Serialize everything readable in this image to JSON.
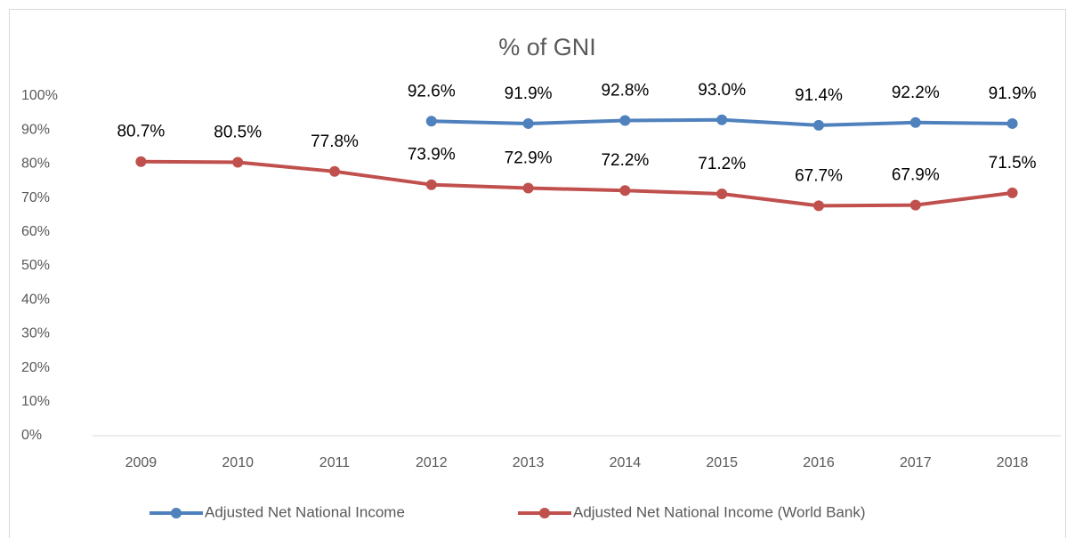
{
  "chart_data": {
    "type": "line",
    "title": "% of GNI",
    "categories": [
      "2009",
      "2010",
      "2011",
      "2012",
      "2013",
      "2014",
      "2015",
      "2016",
      "2017",
      "2018"
    ],
    "series": [
      {
        "name": "Adjusted Net National Income",
        "color": "#4f81bd",
        "values": [
          null,
          null,
          null,
          92.6,
          91.9,
          92.8,
          93.0,
          91.4,
          92.2,
          91.9
        ],
        "value_labels": [
          null,
          null,
          null,
          "92.6%",
          "91.9%",
          "92.8%",
          "93.0%",
          "91.4%",
          "92.2%",
          "91.9%"
        ]
      },
      {
        "name": "Adjusted Net National Income (World Bank)",
        "color": "#c0504d",
        "values": [
          80.7,
          80.5,
          77.8,
          73.9,
          72.9,
          72.2,
          71.2,
          67.7,
          67.9,
          71.5
        ],
        "value_labels": [
          "80.7%",
          "80.5%",
          "77.8%",
          "73.9%",
          "72.9%",
          "72.2%",
          "71.2%",
          "67.7%",
          "67.9%",
          "71.5%"
        ]
      }
    ],
    "ylim": [
      0,
      100
    ],
    "yticks": [
      {
        "value": 0,
        "label": "0%"
      },
      {
        "value": 10,
        "label": "10%"
      },
      {
        "value": 20,
        "label": "20%"
      },
      {
        "value": 30,
        "label": "30%"
      },
      {
        "value": 40,
        "label": "40%"
      },
      {
        "value": 50,
        "label": "50%"
      },
      {
        "value": 60,
        "label": "60%"
      },
      {
        "value": 70,
        "label": "70%"
      },
      {
        "value": 80,
        "label": "80%"
      },
      {
        "value": 90,
        "label": "90%"
      },
      {
        "value": 100,
        "label": "100%"
      }
    ],
    "legend": "bottom"
  }
}
